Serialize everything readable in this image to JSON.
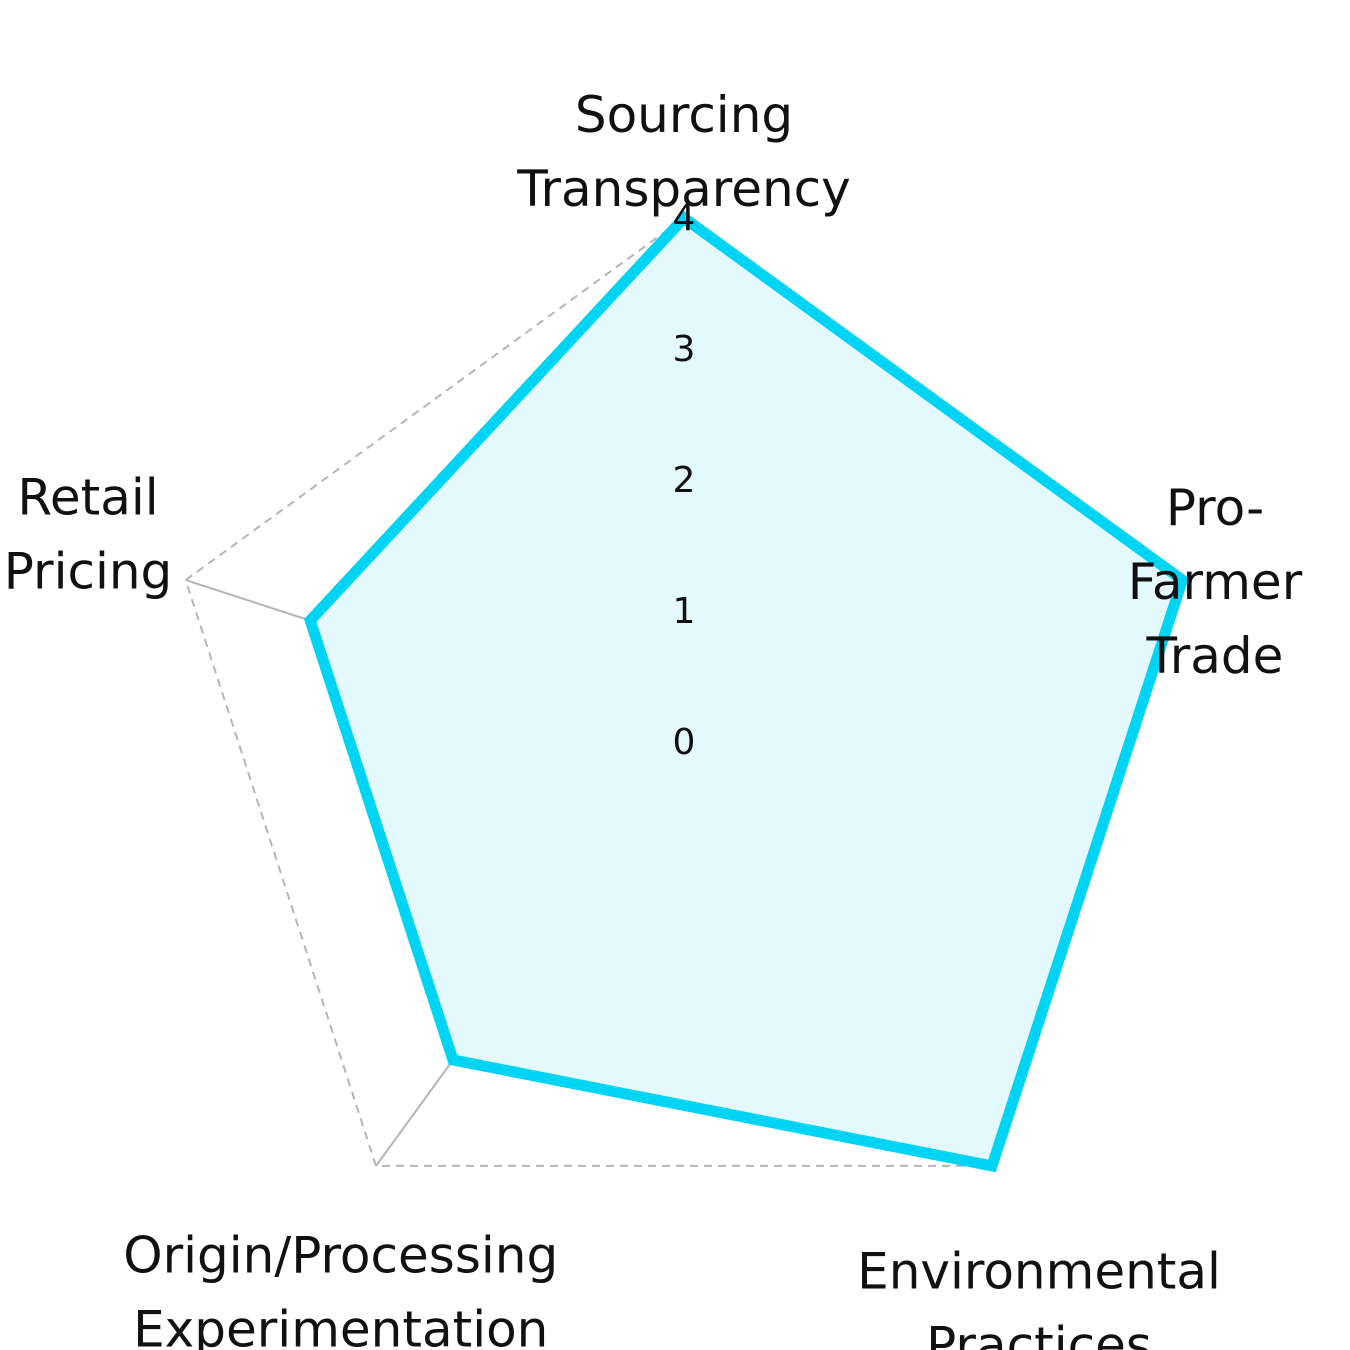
{
  "chart_data": {
    "type": "radar",
    "axes": [
      [
        "Sourcing",
        "Transparency"
      ],
      [
        "Pro-",
        "Farmer",
        "Trade"
      ],
      [
        "Environmental",
        "Practices"
      ],
      [
        "Origin/Processing",
        "Experimentation"
      ],
      [
        "Retail",
        "Pricing"
      ]
    ],
    "radial_range": [
      0,
      4
    ],
    "radial_ticks": [
      "0",
      "1",
      "2",
      "3",
      "4"
    ],
    "series": [
      {
        "values": [
          4,
          4,
          4,
          3,
          3
        ],
        "stroke_color": "#00d4f5",
        "fill_color": "#e4f9fd"
      }
    ],
    "grid": true
  }
}
